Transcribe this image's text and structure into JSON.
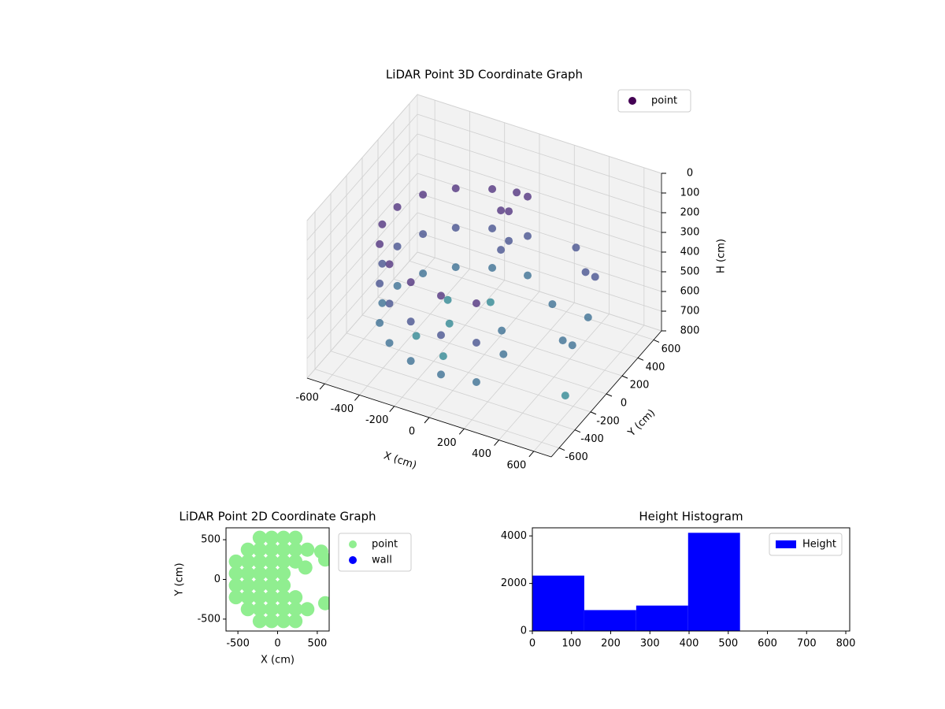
{
  "chart_data": [
    {
      "type": "scatter3d",
      "title": "LiDAR Point 3D Coordinate Graph",
      "xlabel": "X (cm)",
      "ylabel": "Y (cm)",
      "zlabel": "H (cm)",
      "xlim": [
        -700,
        700
      ],
      "ylim": [
        -700,
        700
      ],
      "zlim": [
        800,
        0
      ],
      "xticks": [
        -600,
        -400,
        -200,
        0,
        200,
        400,
        600
      ],
      "yticks": [
        -600,
        -400,
        -200,
        0,
        200,
        400,
        600
      ],
      "zticks": [
        0,
        100,
        200,
        300,
        400,
        500,
        600,
        700,
        800
      ],
      "colormap": "viridis",
      "legend": "upper right",
      "series": [
        {
          "name": "point",
          "color": "#440154",
          "x": [
            0,
            -188,
            -354,
            -476,
            -542,
            -542,
            -476,
            -354,
            -188,
            0,
            188,
            0,
            -188,
            -354,
            -476,
            -542,
            -542,
            -476,
            -354,
            -188,
            0,
            188,
            0,
            -188,
            -354,
            -476,
            -542,
            -542,
            -476,
            -354,
            -188,
            0,
            188,
            -200,
            -300,
            -300,
            -100,
            -100,
            100,
            300,
            400,
            500,
            550,
            550,
            450,
            300,
            200,
            600,
            50,
            50,
            50,
            50,
            50
          ],
          "y": [
            550,
            517,
            421,
            275,
            96,
            -96,
            -275,
            -421,
            -517,
            -550,
            -517,
            550,
            517,
            421,
            275,
            96,
            -96,
            -275,
            -421,
            -517,
            -550,
            -517,
            550,
            517,
            421,
            275,
            96,
            -96,
            -275,
            -421,
            -517,
            -550,
            -517,
            0,
            200,
            -200,
            -300,
            300,
            0,
            500,
            400,
            300,
            100,
            -100,
            0,
            200,
            -200,
            -300,
            100,
            200,
            300,
            100,
            200
          ],
          "z": [
            250,
            250,
            250,
            250,
            250,
            250,
            250,
            250,
            250,
            250,
            250,
            450,
            450,
            450,
            450,
            450,
            450,
            450,
            450,
            450,
            450,
            450,
            650,
            650,
            650,
            650,
            650,
            650,
            650,
            650,
            650,
            650,
            650,
            700,
            700,
            700,
            700,
            700,
            650,
            400,
            450,
            400,
            500,
            550,
            600,
            550,
            650,
            700,
            100,
            150,
            100,
            300,
            300
          ]
        }
      ]
    },
    {
      "type": "scatter",
      "title": "LiDAR Point 2D Coordinate Graph",
      "xlabel": "X (cm)",
      "ylabel": "Y (cm)",
      "xlim": [
        -650,
        650
      ],
      "ylim": [
        -650,
        650
      ],
      "xticks": [
        -500,
        0,
        500
      ],
      "yticks": [
        -500,
        0,
        500
      ],
      "legend": "outside right",
      "series": [
        {
          "name": "point",
          "color": "#90ee90",
          "x": [
            -225,
            -75,
            75,
            225,
            -375,
            -225,
            -75,
            75,
            225,
            375,
            -525,
            -375,
            -225,
            -75,
            75,
            225,
            -525,
            -375,
            -225,
            -75,
            75,
            -525,
            -375,
            -225,
            -75,
            75,
            -525,
            -375,
            -225,
            -75,
            75,
            225,
            -375,
            -225,
            -75,
            75,
            225,
            375,
            -225,
            -75,
            75,
            225,
            550,
            600,
            350,
            600
          ],
          "y": [
            525,
            525,
            525,
            525,
            375,
            375,
            375,
            375,
            375,
            375,
            225,
            225,
            225,
            225,
            225,
            225,
            75,
            75,
            75,
            75,
            75,
            -75,
            -75,
            -75,
            -75,
            -75,
            -225,
            -225,
            -225,
            -225,
            -225,
            -225,
            -375,
            -375,
            -375,
            -375,
            -375,
            -375,
            -525,
            -525,
            -525,
            -525,
            350,
            250,
            150,
            -300
          ]
        },
        {
          "name": "wall",
          "color": "#0000ff",
          "x": [],
          "y": []
        }
      ]
    },
    {
      "type": "histogram",
      "title": "Height Histogram",
      "bins": [
        0,
        132.5,
        265,
        397.5,
        530
      ],
      "values": [
        2330,
        880,
        1070,
        4130
      ],
      "xlim": [
        0,
        810
      ],
      "ylim": [
        0,
        4340
      ],
      "xticks": [
        0,
        100,
        200,
        300,
        400,
        500,
        600,
        700,
        800
      ],
      "yticks": [
        0,
        2000,
        4000
      ],
      "legend": "upper right",
      "series": [
        {
          "name": "Height",
          "color": "#0000ff"
        }
      ]
    }
  ]
}
